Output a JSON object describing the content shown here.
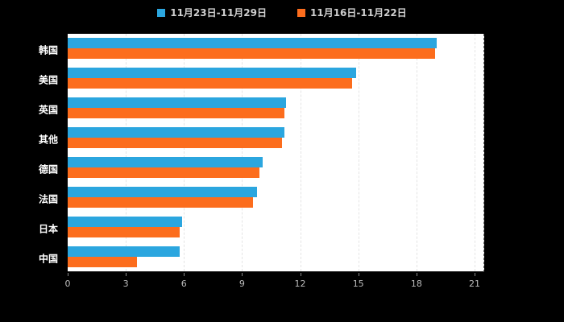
{
  "chart_data": {
    "type": "bar",
    "orientation": "horizontal",
    "title": "",
    "xlabel": "",
    "ylabel": "",
    "categories": [
      "韩国",
      "美国",
      "英国",
      "其他",
      "德国",
      "法国",
      "日本",
      "中国"
    ],
    "series": [
      {
        "name": "11月23日-11月29日",
        "color": "#2BA6DF",
        "values": [
          19.1,
          14.9,
          11.3,
          11.2,
          10.1,
          9.8,
          5.9,
          5.8
        ]
      },
      {
        "name": "11月16日-11月22日",
        "color": "#FC6D1D",
        "values": [
          19.0,
          14.7,
          11.2,
          11.1,
          9.9,
          9.6,
          5.8,
          3.6
        ]
      }
    ],
    "xticks": [
      0,
      3,
      6,
      9,
      12,
      15,
      18,
      21
    ],
    "xmax": 21.5,
    "xlim": [
      0,
      21.5
    ],
    "grid": "dashed-vertical",
    "legend_position": "top",
    "background": "#000000",
    "plot_background": "#ffffff"
  }
}
